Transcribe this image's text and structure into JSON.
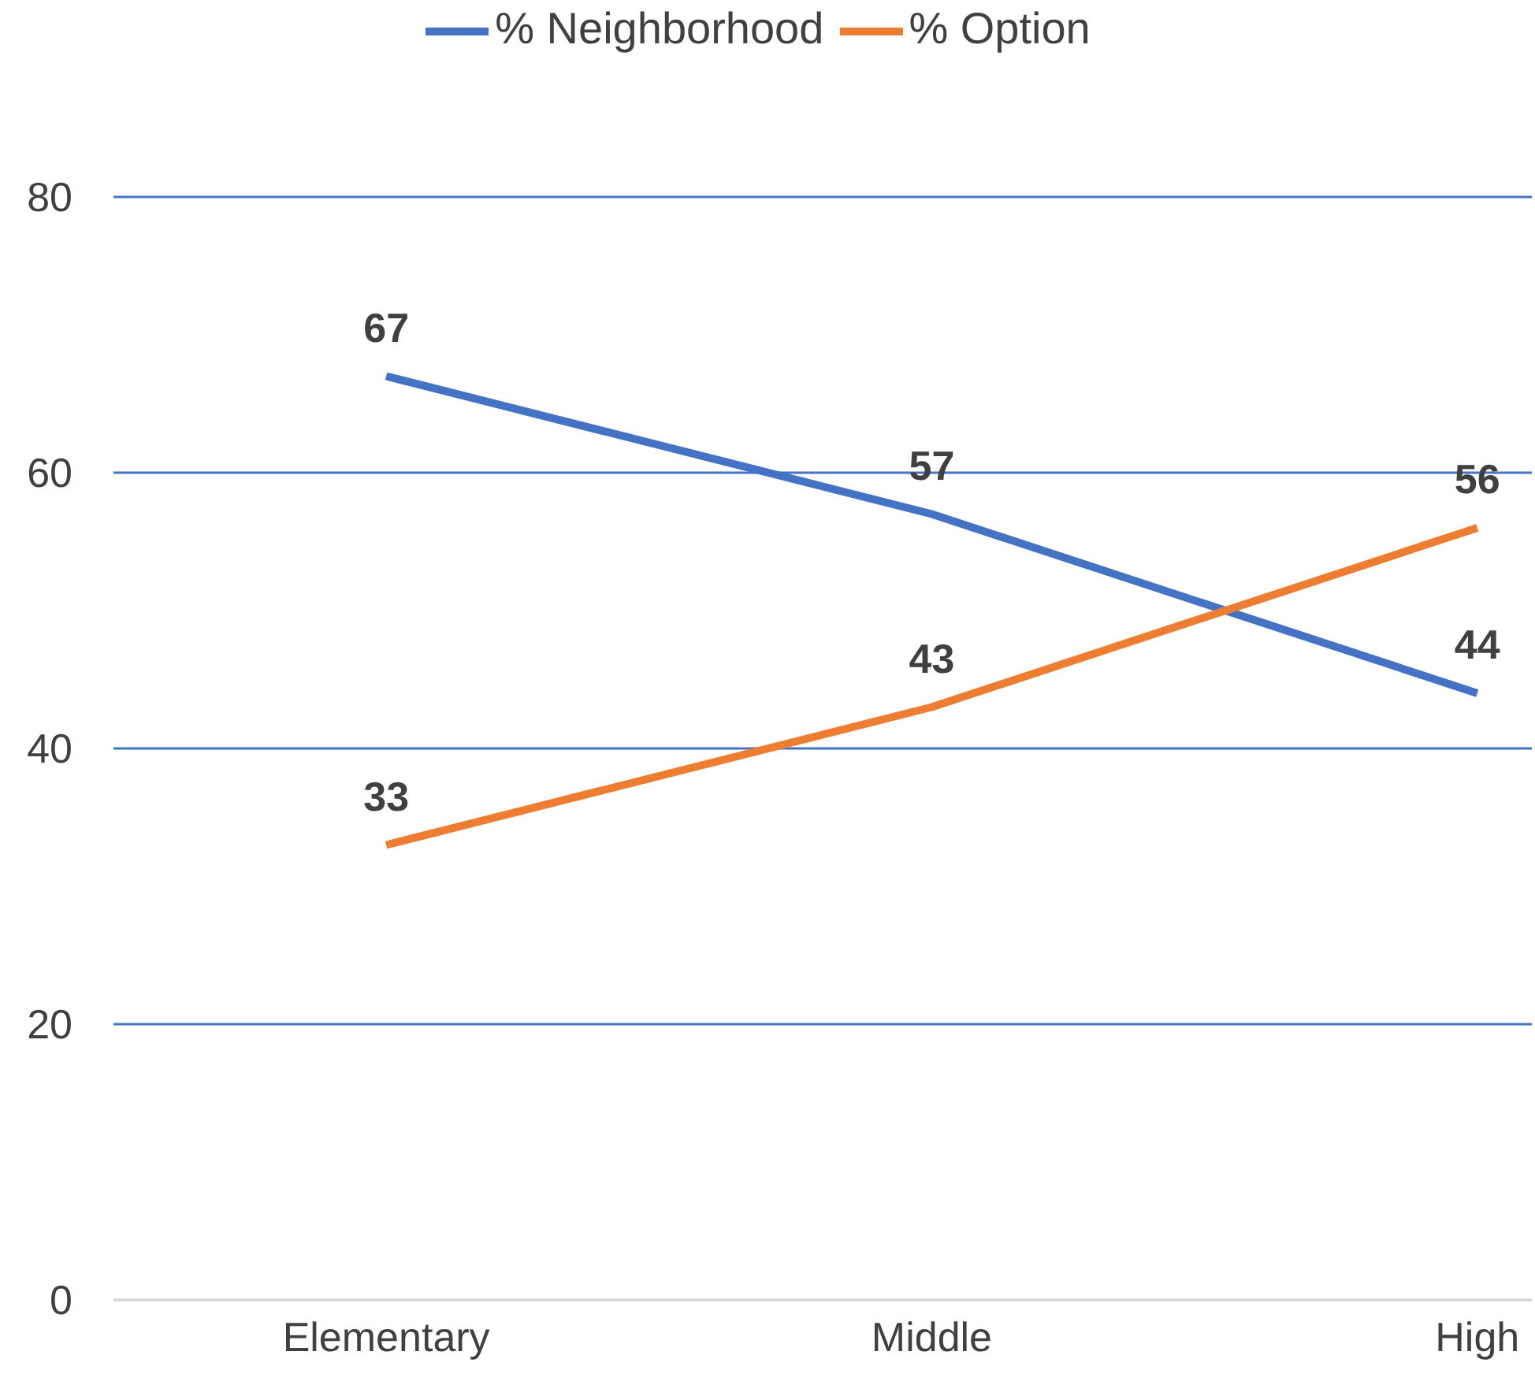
{
  "chart_data": {
    "type": "line",
    "categories": [
      "Elementary",
      "Middle",
      "High"
    ],
    "series": [
      {
        "name": "% Neighborhood",
        "color": "#4472c4",
        "values": [
          67,
          57,
          44
        ]
      },
      {
        "name": "% Option",
        "color": "#ed7d31",
        "values": [
          33,
          43,
          56
        ]
      }
    ],
    "ylim": [
      0,
      80
    ],
    "yticks": [
      0,
      20,
      40,
      60,
      80
    ],
    "grid": "y",
    "legend": "top",
    "data_labels": true,
    "marker": "none"
  }
}
